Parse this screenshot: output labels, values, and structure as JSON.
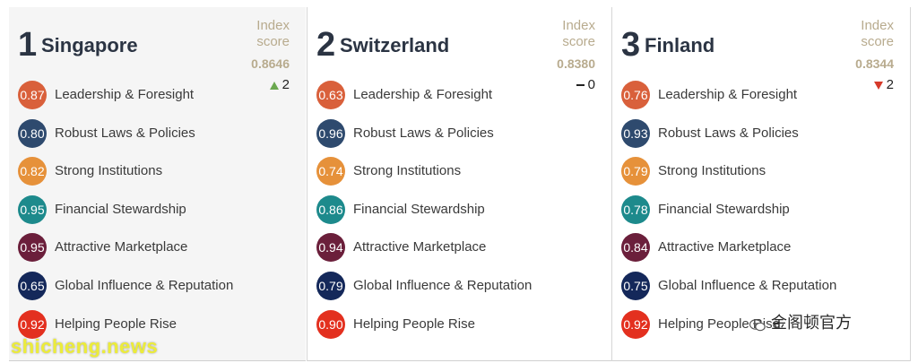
{
  "countries": [
    {
      "rank": "1",
      "name": "Singapore",
      "index_label": "Index score",
      "score": "0.8646",
      "change_dir": "up",
      "change_value": "2",
      "pillars": [
        {
          "value": "0.87",
          "label": "Leadership & Foresight",
          "color": "#d9603b"
        },
        {
          "value": "0.80",
          "label": "Robust Laws & Policies",
          "color": "#2e4a6e"
        },
        {
          "value": "0.82",
          "label": "Strong Institutions",
          "color": "#e6913a"
        },
        {
          "value": "0.95",
          "label": "Financial Stewardship",
          "color": "#1d8a8c"
        },
        {
          "value": "0.95",
          "label": "Attractive Marketplace",
          "color": "#6b1f3b"
        },
        {
          "value": "0.65",
          "label": "Global Influence & Reputation",
          "color": "#14285a"
        },
        {
          "value": "0.92",
          "label": "Helping People Rise",
          "color": "#e3301f"
        }
      ]
    },
    {
      "rank": "2",
      "name": "Switzerland",
      "index_label": "Index score",
      "score": "0.8380",
      "change_dir": "flat",
      "change_value": "0",
      "pillars": [
        {
          "value": "0.63",
          "label": "Leadership & Foresight",
          "color": "#d9603b"
        },
        {
          "value": "0.96",
          "label": "Robust Laws & Policies",
          "color": "#2e4a6e"
        },
        {
          "value": "0.74",
          "label": "Strong Institutions",
          "color": "#e6913a"
        },
        {
          "value": "0.86",
          "label": "Financial Stewardship",
          "color": "#1d8a8c"
        },
        {
          "value": "0.94",
          "label": "Attractive Marketplace",
          "color": "#6b1f3b"
        },
        {
          "value": "0.79",
          "label": "Global Influence & Reputation",
          "color": "#14285a"
        },
        {
          "value": "0.90",
          "label": "Helping People Rise",
          "color": "#e3301f"
        }
      ]
    },
    {
      "rank": "3",
      "name": "Finland",
      "index_label": "Index score",
      "score": "0.8344",
      "change_dir": "down",
      "change_value": "2",
      "pillars": [
        {
          "value": "0.76",
          "label": "Leadership & Foresight",
          "color": "#d9603b"
        },
        {
          "value": "0.93",
          "label": "Robust Laws & Policies",
          "color": "#2e4a6e"
        },
        {
          "value": "0.79",
          "label": "Strong Institutions",
          "color": "#e6913a"
        },
        {
          "value": "0.78",
          "label": "Financial Stewardship",
          "color": "#1d8a8c"
        },
        {
          "value": "0.84",
          "label": "Attractive Marketplace",
          "color": "#6b1f3b"
        },
        {
          "value": "0.75",
          "label": "Global Influence & Reputation",
          "color": "#14285a"
        },
        {
          "value": "0.92",
          "label": "Helping People Rise",
          "color": "#e3301f"
        }
      ]
    }
  ],
  "colors": {
    "score_text": "#b8ab8e",
    "up": "#6aa84f",
    "down": "#d63a2a"
  },
  "watermarks": {
    "left": "shicheng.news",
    "right": "金阁顿官方"
  }
}
